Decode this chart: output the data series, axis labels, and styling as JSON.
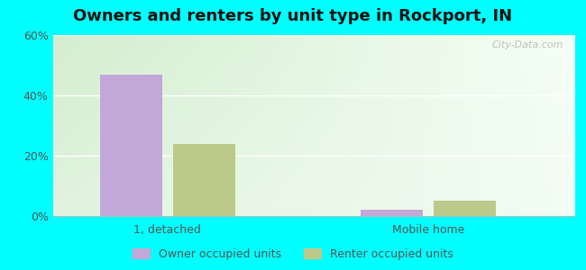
{
  "title": "Owners and renters by unit type in Rockport, IN",
  "categories": [
    "1, detached",
    "Mobile home"
  ],
  "owner_values": [
    47,
    2
  ],
  "renter_values": [
    24,
    5
  ],
  "owner_color": "#c2a8d8",
  "renter_color": "#bdc98a",
  "bar_width": 0.12,
  "group_positions": [
    0.22,
    0.72
  ],
  "bar_gap": 0.02,
  "ylim": [
    0,
    60
  ],
  "yticks": [
    0,
    20,
    40,
    60
  ],
  "ytick_labels": [
    "0%",
    "20%",
    "40%",
    "60%"
  ],
  "outer_bg": "#00ffff",
  "legend_owner": "Owner occupied units",
  "legend_renter": "Renter occupied units",
  "watermark": "City-Data.com",
  "title_fontsize": 13,
  "label_fontsize": 9,
  "legend_fontsize": 9
}
